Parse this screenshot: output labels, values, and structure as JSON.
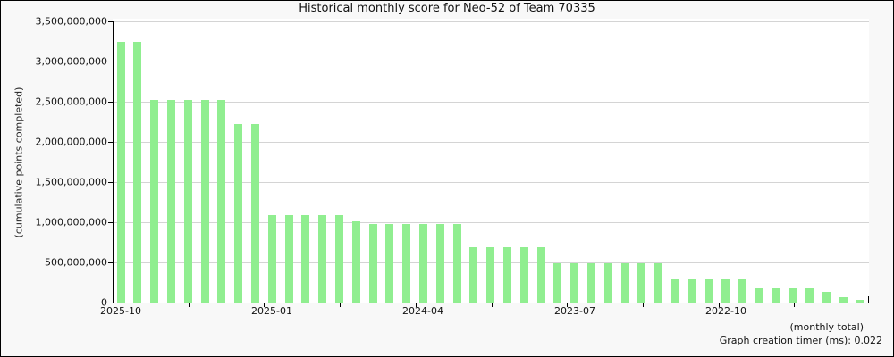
{
  "footer": "Graph creation timer (ms): 0.022",
  "colors": {
    "bar": "#90ee90",
    "grid": "#d4d4d4",
    "axis": "#000000",
    "plot_background": "#ffffff",
    "page_background": "#f8f8f8"
  },
  "chart_data": {
    "type": "bar",
    "title": "Historical monthly score for Neo-52 of Team 70335",
    "ylabel": "(cumulative points completed)",
    "xlabel": "(monthly total)",
    "ylim": [
      0,
      3500000000
    ],
    "ytick_step": 500000000,
    "grid": true,
    "ytick_labels": [
      "0",
      "500,000,000",
      "1,000,000,000",
      "1,500,000,000",
      "2,000,000,000",
      "2,500,000,000",
      "3,000,000,000",
      "3,500,000,000"
    ],
    "xtick_labels": [
      "2025-10",
      "2025-01",
      "2024-04",
      "2023-07",
      "2022-10"
    ],
    "xtick_indices": [
      0,
      9,
      18,
      27,
      36
    ],
    "categories": [
      "2025-10",
      "2025-09",
      "2025-08",
      "2025-07",
      "2025-06",
      "2025-05",
      "2025-04",
      "2025-03",
      "2025-02",
      "2025-01",
      "2024-12",
      "2024-11",
      "2024-10",
      "2024-09",
      "2024-08",
      "2024-07",
      "2024-06",
      "2024-05",
      "2024-04",
      "2024-03",
      "2024-02",
      "2024-01",
      "2023-12",
      "2023-11",
      "2023-10",
      "2023-09",
      "2023-08",
      "2023-07",
      "2023-06",
      "2023-05",
      "2023-04",
      "2023-03",
      "2023-02",
      "2023-01",
      "2022-12",
      "2022-11",
      "2022-10",
      "2022-09",
      "2022-08",
      "2022-07",
      "2022-06",
      "2022-05",
      "2022-04",
      "2022-03",
      "2022-02"
    ],
    "values": [
      3240000000,
      3240000000,
      2520000000,
      2520000000,
      2520000000,
      2520000000,
      2520000000,
      2220000000,
      2220000000,
      1090000000,
      1090000000,
      1090000000,
      1090000000,
      1090000000,
      1010000000,
      980000000,
      980000000,
      980000000,
      980000000,
      980000000,
      980000000,
      690000000,
      690000000,
      690000000,
      690000000,
      690000000,
      490000000,
      490000000,
      490000000,
      490000000,
      490000000,
      490000000,
      490000000,
      290000000,
      290000000,
      290000000,
      290000000,
      290000000,
      180000000,
      180000000,
      180000000,
      180000000,
      130000000,
      70000000,
      30000000
    ]
  }
}
